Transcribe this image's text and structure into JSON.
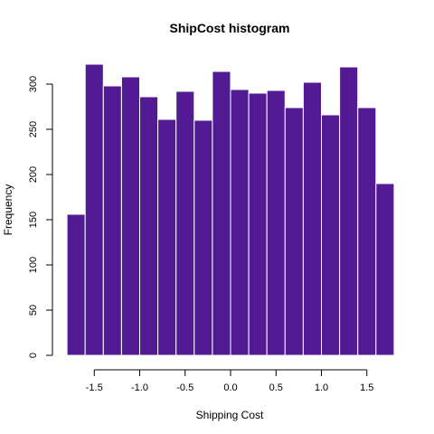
{
  "chart_data": {
    "type": "bar",
    "title": "ShipCost histogram",
    "xlabel": "Shipping Cost",
    "ylabel": "Frequency",
    "bin_edges": [
      -1.8,
      -1.6,
      -1.4,
      -1.2,
      -1.0,
      -0.8,
      -0.6,
      -0.4,
      -0.2,
      0.0,
      0.2,
      0.4,
      0.6,
      0.8,
      1.0,
      1.2,
      1.4,
      1.6,
      1.8
    ],
    "values": [
      156,
      322,
      298,
      308,
      286,
      261,
      292,
      260,
      314,
      294,
      290,
      293,
      274,
      302,
      266,
      319,
      274,
      190
    ],
    "x_ticks": [
      -1.5,
      -1.0,
      -0.5,
      0.0,
      0.5,
      1.0,
      1.5
    ],
    "x_tick_labels": [
      "-1.5",
      "-1.0",
      "-0.5",
      "0.0",
      "0.5",
      "1.0",
      "1.5"
    ],
    "y_ticks": [
      0,
      50,
      100,
      150,
      200,
      250,
      300
    ],
    "y_tick_labels": [
      "0",
      "50",
      "100",
      "150",
      "200",
      "250",
      "300"
    ],
    "xlim": [
      -1.8,
      1.8
    ],
    "ylim": [
      0,
      300
    ],
    "bar_color": "#531B93",
    "bar_border_color": "#ffffff",
    "grid": false
  }
}
